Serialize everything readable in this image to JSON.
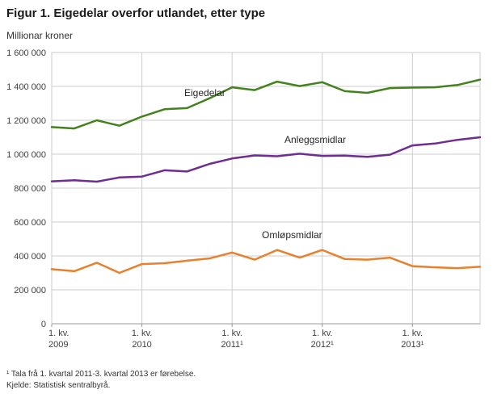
{
  "title": "Figur 1. Eigedelar overfor utlandet, etter type",
  "y_axis_unit": "Millionar kroner",
  "footnote": "¹ Tala frå 1. kvartal 2011-3. kvartal 2013 er førebelse.",
  "source": "Kjelde: Statistisk sentralbyrå.",
  "chart_data": {
    "type": "line",
    "title": "Figur 1. Eigedelar overfor utlandet, etter type",
    "ylabel": "Millionar kroner",
    "xlabel": "",
    "ylim": [
      0,
      1600000
    ],
    "grid": true,
    "legend_position": "inline-labels",
    "grid_color": "#cccccc",
    "axis_color": "#999999",
    "tick_label_color": "#404040",
    "y_ticks": [
      {
        "value": 0,
        "label": "0"
      },
      {
        "value": 200000,
        "label": "200 000"
      },
      {
        "value": 400000,
        "label": "400 000"
      },
      {
        "value": 600000,
        "label": "600 000"
      },
      {
        "value": 800000,
        "label": "800 000"
      },
      {
        "value": 1000000,
        "label": "1 000 000"
      },
      {
        "value": 1200000,
        "label": "1 200 000"
      },
      {
        "value": 1400000,
        "label": "1 400 000"
      },
      {
        "value": 1600000,
        "label": "1 600 000"
      }
    ],
    "x_ticks": [
      {
        "index": 0,
        "label": "1. kv.",
        "year": "2009"
      },
      {
        "index": 4,
        "label": "1. kv.",
        "year": "2010"
      },
      {
        "index": 8,
        "label": "1. kv.",
        "year": "2011¹"
      },
      {
        "index": 12,
        "label": "1. kv.",
        "year": "2012¹"
      },
      {
        "index": 16,
        "label": "1. kv.",
        "year": "2013¹"
      }
    ],
    "x_description": "Quarterly, 1. kv. 2009 to 4. kv. 2013 (20 quarters)",
    "series": [
      {
        "id": "eigedelar",
        "name": "Eigedelar",
        "color": "#43821d",
        "values": [
          1160000,
          1152000,
          1200000,
          1168000,
          1222000,
          1265000,
          1272000,
          1330000,
          1395000,
          1378000,
          1428000,
          1402000,
          1425000,
          1372000,
          1362000,
          1390000,
          1393000,
          1395000,
          1408000,
          1440000
        ]
      },
      {
        "id": "anleggsmidlar",
        "name": "Anleggsmidlar",
        "color": "#6f2c91",
        "values": [
          840000,
          846000,
          838000,
          863000,
          868000,
          905000,
          898000,
          943000,
          975000,
          993000,
          988000,
          1003000,
          990000,
          992000,
          985000,
          997000,
          1052000,
          1063000,
          1085000,
          1100000
        ]
      },
      {
        "id": "omlopsmidlar",
        "name": "Omløpsmidlar",
        "color": "#e8802d",
        "values": [
          322000,
          310000,
          360000,
          300000,
          352000,
          357000,
          372000,
          385000,
          420000,
          378000,
          435000,
          390000,
          435000,
          382000,
          378000,
          390000,
          340000,
          333000,
          328000,
          336000
        ]
      }
    ]
  }
}
